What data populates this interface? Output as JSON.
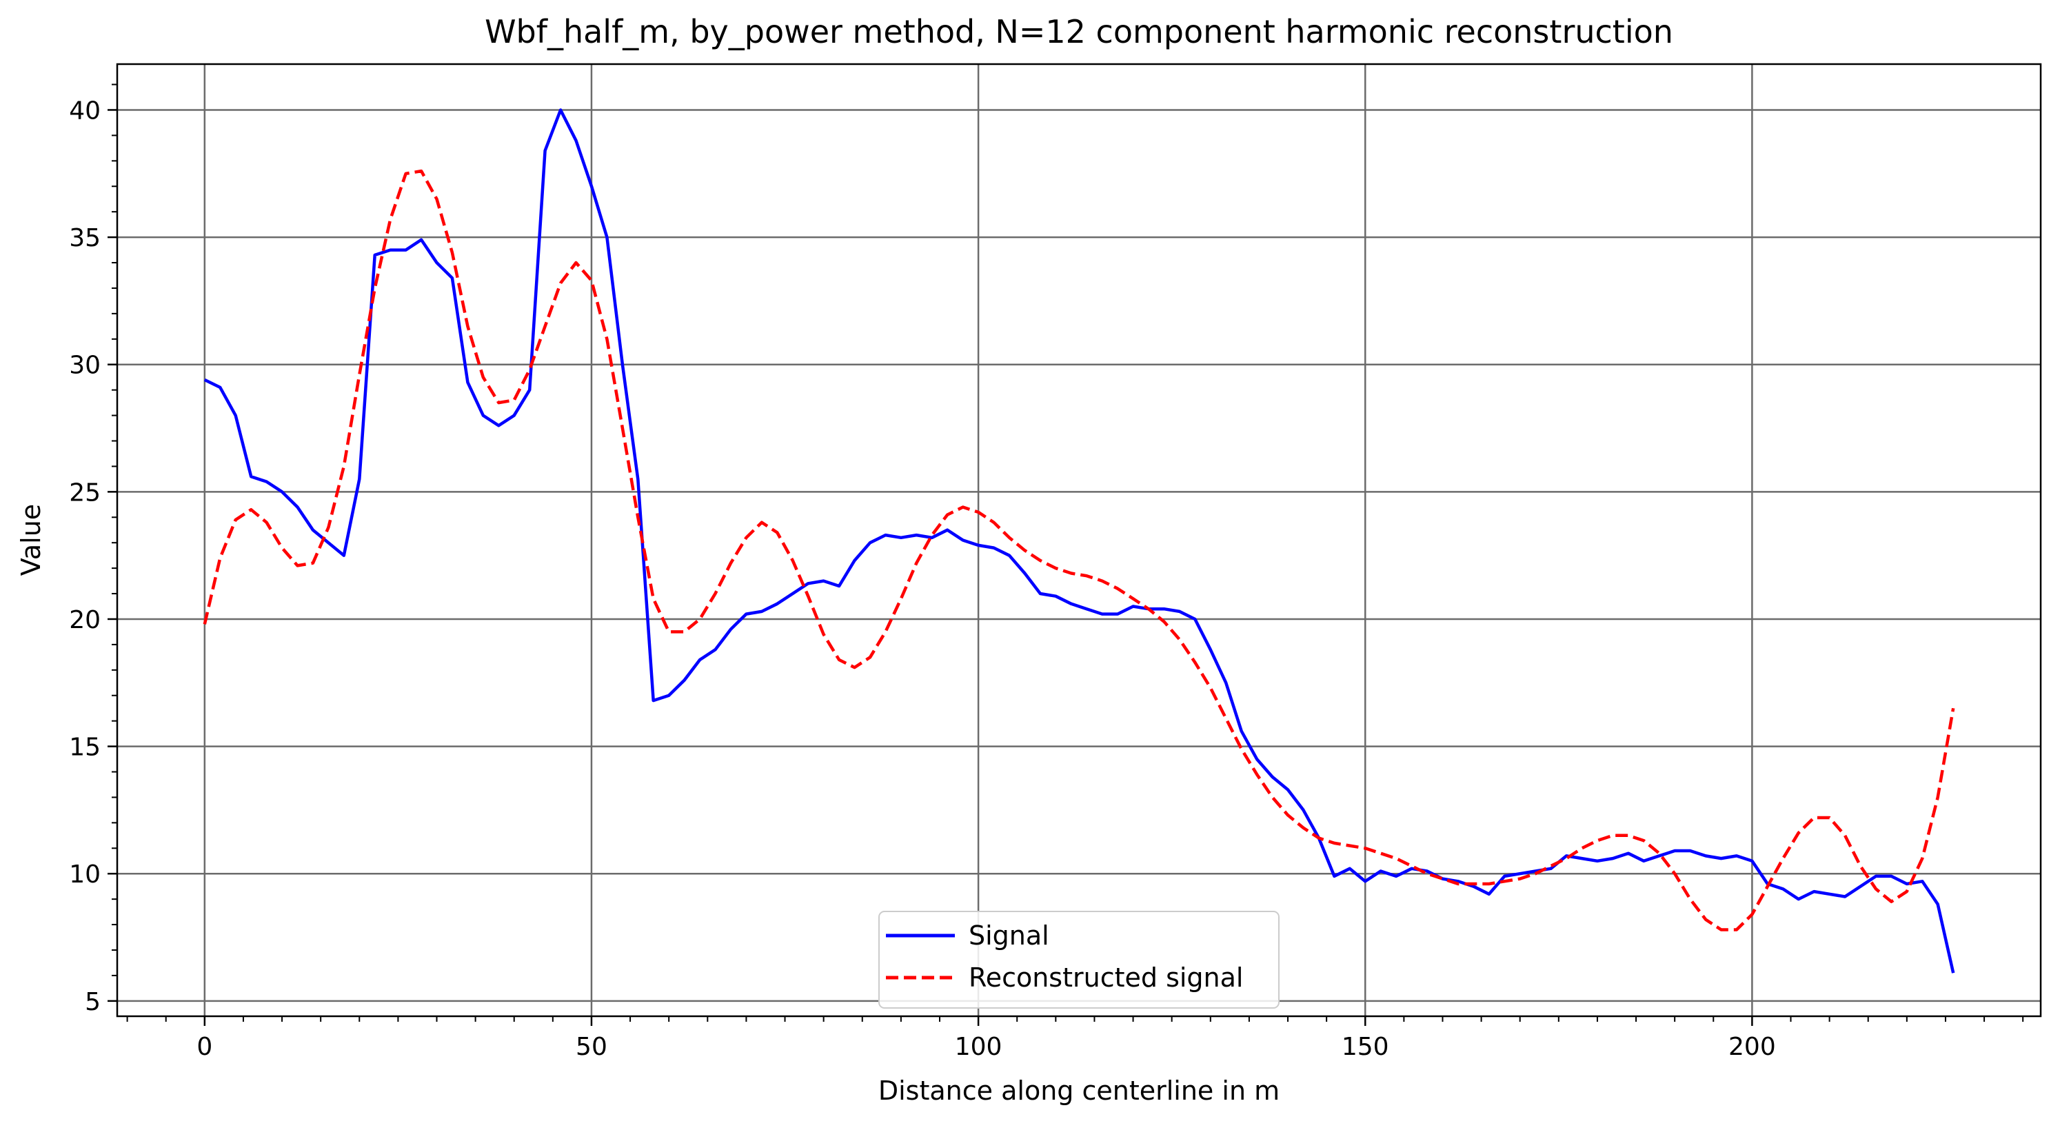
{
  "chart_data": {
    "type": "line",
    "title": "Wbf_half_m, by_power method, N=12 component harmonic reconstruction",
    "xlabel": "Distance along centerline in m",
    "ylabel": "Value",
    "xlim": [
      -11.3,
      237.3
    ],
    "ylim": [
      4.4,
      41.8
    ],
    "xticks": [
      0,
      50,
      100,
      150,
      200
    ],
    "xtick_labels": [
      "0",
      "50",
      "100",
      "150",
      "200"
    ],
    "yticks": [
      5,
      10,
      15,
      20,
      25,
      30,
      35,
      40
    ],
    "ytick_labels": [
      "5",
      "10",
      "15",
      "20",
      "25",
      "30",
      "35",
      "40"
    ],
    "grid": true,
    "legend_position": "bottom-center",
    "series": [
      {
        "name": "Signal",
        "color": "#0000ff",
        "style": "solid",
        "x": [
          0,
          2,
          4,
          6,
          8,
          10,
          12,
          14,
          16,
          18,
          20,
          22,
          24,
          26,
          28,
          30,
          32,
          34,
          36,
          38,
          40,
          42,
          44,
          46,
          48,
          50,
          52,
          54,
          56,
          58,
          60,
          62,
          64,
          66,
          68,
          70,
          72,
          74,
          76,
          78,
          80,
          82,
          84,
          86,
          88,
          90,
          92,
          94,
          96,
          98,
          100,
          102,
          104,
          106,
          108,
          110,
          112,
          114,
          116,
          118,
          120,
          122,
          124,
          126,
          128,
          130,
          132,
          134,
          136,
          138,
          140,
          142,
          144,
          146,
          148,
          150,
          152,
          154,
          156,
          158,
          160,
          162,
          164,
          166,
          168,
          170,
          172,
          174,
          176,
          178,
          180,
          182,
          184,
          186,
          188,
          190,
          192,
          194,
          196,
          198,
          200,
          202,
          204,
          206,
          208,
          210,
          212,
          214,
          216,
          218,
          220,
          222,
          224,
          226
        ],
        "values": [
          29.4,
          29.1,
          28.0,
          25.6,
          25.4,
          25.0,
          24.4,
          23.5,
          23.0,
          22.5,
          25.5,
          34.3,
          34.5,
          34.5,
          34.9,
          34.0,
          33.4,
          29.3,
          28.0,
          27.6,
          28.0,
          29.0,
          38.4,
          40.0,
          38.8,
          37.0,
          35.0,
          30.0,
          25.5,
          16.8,
          17.0,
          17.6,
          18.4,
          18.8,
          19.6,
          20.2,
          20.3,
          20.6,
          21.0,
          21.4,
          21.5,
          21.3,
          22.3,
          23.0,
          23.3,
          23.2,
          23.3,
          23.2,
          23.5,
          23.1,
          22.9,
          22.8,
          22.5,
          21.8,
          21.0,
          20.9,
          20.6,
          20.4,
          20.2,
          20.2,
          20.5,
          20.4,
          20.4,
          20.3,
          20.0,
          18.8,
          17.5,
          15.6,
          14.5,
          13.8,
          13.3,
          12.5,
          11.4,
          9.9,
          10.2,
          9.7,
          10.1,
          9.9,
          10.2,
          10.1,
          9.8,
          9.7,
          9.5,
          9.2,
          9.9,
          10.0,
          10.1,
          10.2,
          10.7,
          10.6,
          10.5,
          10.6,
          10.8,
          10.5,
          10.7,
          10.9,
          10.9,
          10.7,
          10.6,
          10.7,
          10.5,
          9.6,
          9.4,
          9.0,
          9.3,
          9.2,
          9.1,
          9.5,
          9.9,
          9.9,
          9.6,
          9.7,
          8.8,
          6.1
        ]
      },
      {
        "name": "Reconstructed signal",
        "color": "#ff0000",
        "style": "dashed",
        "x": [
          0,
          2,
          4,
          6,
          8,
          10,
          12,
          14,
          16,
          18,
          20,
          22,
          24,
          26,
          28,
          30,
          32,
          34,
          36,
          38,
          40,
          42,
          44,
          46,
          48,
          50,
          52,
          54,
          56,
          58,
          60,
          62,
          64,
          66,
          68,
          70,
          72,
          74,
          76,
          78,
          80,
          82,
          84,
          86,
          88,
          90,
          92,
          94,
          96,
          98,
          100,
          102,
          104,
          106,
          108,
          110,
          112,
          114,
          116,
          118,
          120,
          122,
          124,
          126,
          128,
          130,
          132,
          134,
          136,
          138,
          140,
          142,
          144,
          146,
          148,
          150,
          152,
          154,
          156,
          158,
          160,
          162,
          164,
          166,
          168,
          170,
          172,
          174,
          176,
          178,
          180,
          182,
          184,
          186,
          188,
          190,
          192,
          194,
          196,
          198,
          200,
          202,
          204,
          206,
          208,
          210,
          212,
          214,
          216,
          218,
          220,
          222,
          224,
          226
        ],
        "values": [
          19.8,
          22.4,
          23.9,
          24.3,
          23.8,
          22.8,
          22.1,
          22.2,
          23.6,
          26.0,
          29.6,
          33.0,
          35.7,
          37.5,
          37.6,
          36.5,
          34.4,
          31.5,
          29.5,
          28.5,
          28.6,
          29.8,
          31.5,
          33.2,
          34.0,
          33.3,
          31.0,
          27.5,
          24.0,
          20.8,
          19.5,
          19.5,
          20.0,
          21.0,
          22.2,
          23.2,
          23.8,
          23.4,
          22.3,
          20.9,
          19.4,
          18.4,
          18.1,
          18.5,
          19.5,
          20.8,
          22.2,
          23.3,
          24.1,
          24.4,
          24.2,
          23.8,
          23.2,
          22.7,
          22.3,
          22.0,
          21.8,
          21.7,
          21.5,
          21.2,
          20.8,
          20.4,
          19.9,
          19.2,
          18.3,
          17.3,
          16.1,
          14.9,
          13.9,
          13.0,
          12.3,
          11.8,
          11.4,
          11.2,
          11.1,
          11.0,
          10.8,
          10.6,
          10.3,
          10.0,
          9.8,
          9.6,
          9.6,
          9.6,
          9.7,
          9.8,
          10.0,
          10.3,
          10.6,
          11.0,
          11.3,
          11.5,
          11.5,
          11.3,
          10.8,
          10.0,
          9.0,
          8.2,
          7.8,
          7.8,
          8.4,
          9.5,
          10.6,
          11.6,
          12.2,
          12.2,
          11.5,
          10.3,
          9.4,
          8.9,
          9.3,
          10.6,
          13.0,
          16.5
        ]
      }
    ]
  }
}
